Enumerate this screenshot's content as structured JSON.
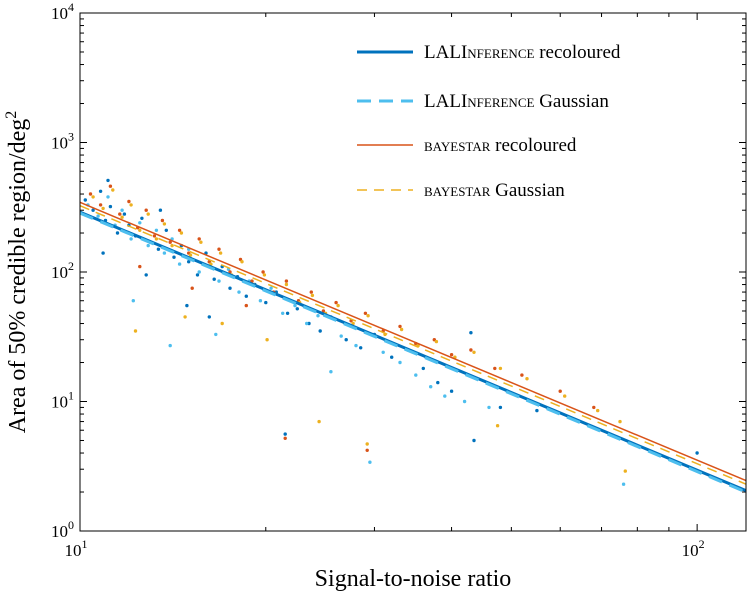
{
  "chart_data": {
    "type": "scatter",
    "title": "",
    "xlabel": "Signal-to-noise ratio",
    "ylabel": "Area of 50% credible region/deg",
    "ylabel_exponent": "2",
    "xscale": "log",
    "yscale": "log",
    "xlim": [
      10,
      120
    ],
    "ylim": [
      1,
      10000
    ],
    "x_ticks": [
      {
        "value": 10,
        "base": "10",
        "exp": "1"
      },
      {
        "value": 100,
        "base": "10",
        "exp": "2"
      }
    ],
    "y_ticks": [
      {
        "value": 1,
        "base": "10",
        "exp": "0"
      },
      {
        "value": 10,
        "base": "10",
        "exp": "1"
      },
      {
        "value": 100,
        "base": "10",
        "exp": "2"
      },
      {
        "value": 1000,
        "base": "10",
        "exp": "3"
      },
      {
        "value": 10000,
        "base": "10",
        "exp": "4"
      }
    ],
    "legend_position": "top-right",
    "legend": [
      {
        "name": "LALINFERENCE recoloured",
        "prefix": "LAL",
        "smallcaps": "Inference",
        "suffix": " recoloured",
        "color": "#0072BD",
        "style": "solid",
        "weight": "thick"
      },
      {
        "name": "LALINFERENCE Gaussian",
        "prefix": "LAL",
        "smallcaps": "Inference",
        "suffix": " Gaussian",
        "color": "#4DBEEE",
        "style": "dashed",
        "weight": "thick"
      },
      {
        "name": "BAYESTAR recoloured",
        "prefix": "",
        "smallcaps": "bayestar",
        "suffix": " recoloured",
        "color": "#D95319",
        "style": "solid",
        "weight": "thin"
      },
      {
        "name": "BAYESTAR Gaussian",
        "prefix": "",
        "smallcaps": "bayestar",
        "suffix": " Gaussian",
        "color": "#EDB120",
        "style": "dashed",
        "weight": "thin"
      }
    ],
    "series": [
      {
        "name": "LALINFERENCE recoloured",
        "color": "#0072BD",
        "fit": {
          "x": [
            10,
            120
          ],
          "y": [
            290,
            2.05
          ]
        }
      },
      {
        "name": "LALINFERENCE Gaussian",
        "color": "#4DBEEE",
        "fit": {
          "x": [
            10,
            120
          ],
          "y": [
            285,
            2.0
          ]
        }
      },
      {
        "name": "BAYESTAR recoloured",
        "color": "#D95319",
        "fit": {
          "x": [
            10,
            120
          ],
          "y": [
            345,
            2.45
          ]
        }
      },
      {
        "name": "BAYESTAR Gaussian",
        "color": "#EDB120",
        "fit": {
          "x": [
            10,
            120
          ],
          "y": [
            325,
            2.3
          ]
        }
      }
    ],
    "scatter_points": {
      "#0072BD": [
        [
          10.2,
          360
        ],
        [
          10.5,
          300
        ],
        [
          10.8,
          420
        ],
        [
          11.0,
          250
        ],
        [
          11.2,
          320
        ],
        [
          11.5,
          200
        ],
        [
          11.8,
          280
        ],
        [
          12.0,
          230
        ],
        [
          12.3,
          190
        ],
        [
          12.6,
          260
        ],
        [
          13.0,
          170
        ],
        [
          13.4,
          150
        ],
        [
          13.8,
          210
        ],
        [
          14.2,
          130
        ],
        [
          14.6,
          160
        ],
        [
          15.0,
          120
        ],
        [
          15.5,
          95
        ],
        [
          16.0,
          140
        ],
        [
          16.5,
          88
        ],
        [
          17.0,
          110
        ],
        [
          17.5,
          75
        ],
        [
          18.0,
          92
        ],
        [
          18.6,
          65
        ],
        [
          19.2,
          80
        ],
        [
          20.0,
          58
        ],
        [
          20.8,
          70
        ],
        [
          21.5,
          5.6
        ],
        [
          21.7,
          48
        ],
        [
          22.5,
          52
        ],
        [
          23.5,
          40
        ],
        [
          24.5,
          35
        ],
        [
          25.5,
          45
        ],
        [
          27.0,
          30
        ],
        [
          28.5,
          26
        ],
        [
          30.0,
          33
        ],
        [
          32.0,
          22
        ],
        [
          34.0,
          25
        ],
        [
          36.0,
          18
        ],
        [
          38.0,
          14
        ],
        [
          40.0,
          12
        ],
        [
          43.0,
          34
        ],
        [
          43.5,
          5.0
        ],
        [
          48.0,
          9.0
        ],
        [
          55.0,
          8.5
        ],
        [
          100.0,
          4.0
        ],
        [
          11.1,
          510
        ],
        [
          10.9,
          140
        ],
        [
          12.8,
          95
        ],
        [
          14.9,
          55
        ],
        [
          16.2,
          45
        ],
        [
          13.5,
          300
        ]
      ],
      "#4DBEEE": [
        [
          10.3,
          330
        ],
        [
          10.7,
          270
        ],
        [
          11.1,
          380
        ],
        [
          11.4,
          230
        ],
        [
          11.7,
          300
        ],
        [
          12.1,
          180
        ],
        [
          12.5,
          240
        ],
        [
          12.9,
          160
        ],
        [
          13.3,
          210
        ],
        [
          13.7,
          140
        ],
        [
          14.1,
          180
        ],
        [
          14.5,
          115
        ],
        [
          15.0,
          150
        ],
        [
          15.6,
          100
        ],
        [
          16.2,
          120
        ],
        [
          16.8,
          85
        ],
        [
          17.4,
          105
        ],
        [
          18.1,
          70
        ],
        [
          18.8,
          85
        ],
        [
          19.6,
          60
        ],
        [
          20.4,
          75
        ],
        [
          21.3,
          48
        ],
        [
          22.3,
          55
        ],
        [
          23.3,
          40
        ],
        [
          24.3,
          46
        ],
        [
          25.5,
          17
        ],
        [
          26.5,
          32
        ],
        [
          28.0,
          27
        ],
        [
          29.5,
          3.4
        ],
        [
          31.0,
          24
        ],
        [
          33.0,
          20
        ],
        [
          35.0,
          16
        ],
        [
          37.0,
          13
        ],
        [
          39.0,
          11
        ],
        [
          42.0,
          10
        ],
        [
          46.0,
          9
        ],
        [
          76.0,
          2.3
        ],
        [
          14.0,
          27
        ],
        [
          12.2,
          60
        ],
        [
          16.6,
          33
        ]
      ],
      "#D95319": [
        [
          10.4,
          400
        ],
        [
          10.8,
          330
        ],
        [
          11.2,
          460
        ],
        [
          11.6,
          280
        ],
        [
          12.0,
          350
        ],
        [
          12.4,
          220
        ],
        [
          12.8,
          300
        ],
        [
          13.2,
          190
        ],
        [
          13.6,
          250
        ],
        [
          14.0,
          170
        ],
        [
          14.5,
          210
        ],
        [
          15.0,
          140
        ],
        [
          15.6,
          180
        ],
        [
          16.2,
          120
        ],
        [
          16.8,
          150
        ],
        [
          17.5,
          100
        ],
        [
          18.2,
          125
        ],
        [
          19.0,
          85
        ],
        [
          19.8,
          100
        ],
        [
          20.6,
          70
        ],
        [
          21.5,
          5.2
        ],
        [
          21.6,
          85
        ],
        [
          22.6,
          60
        ],
        [
          23.7,
          70
        ],
        [
          24.8,
          50
        ],
        [
          26.0,
          58
        ],
        [
          27.5,
          42
        ],
        [
          29.0,
          48
        ],
        [
          29.2,
          4.2
        ],
        [
          31.0,
          35
        ],
        [
          33.0,
          38
        ],
        [
          35.0,
          28
        ],
        [
          37.5,
          30
        ],
        [
          40.0,
          23
        ],
        [
          43.0,
          25
        ],
        [
          47.0,
          18
        ],
        [
          52.0,
          16
        ],
        [
          60.0,
          12
        ],
        [
          68.0,
          9
        ],
        [
          12.5,
          110
        ],
        [
          15.2,
          75
        ],
        [
          18.6,
          55
        ]
      ],
      "#EDB120": [
        [
          10.5,
          380
        ],
        [
          10.9,
          310
        ],
        [
          11.3,
          430
        ],
        [
          11.7,
          265
        ],
        [
          12.1,
          330
        ],
        [
          12.5,
          210
        ],
        [
          12.9,
          280
        ],
        [
          13.3,
          180
        ],
        [
          13.7,
          235
        ],
        [
          14.1,
          160
        ],
        [
          14.6,
          200
        ],
        [
          15.1,
          135
        ],
        [
          15.7,
          170
        ],
        [
          16.3,
          115
        ],
        [
          16.9,
          140
        ],
        [
          17.6,
          95
        ],
        [
          18.3,
          120
        ],
        [
          19.1,
          80
        ],
        [
          19.9,
          95
        ],
        [
          20.7,
          68
        ],
        [
          21.6,
          80
        ],
        [
          22.7,
          58
        ],
        [
          23.8,
          66
        ],
        [
          24.4,
          7.0
        ],
        [
          25.0,
          48
        ],
        [
          26.2,
          55
        ],
        [
          27.7,
          40
        ],
        [
          29.2,
          4.7
        ],
        [
          29.3,
          46
        ],
        [
          31.2,
          33
        ],
        [
          33.2,
          36
        ],
        [
          35.3,
          27
        ],
        [
          37.8,
          29
        ],
        [
          40.5,
          22
        ],
        [
          43.5,
          24
        ],
        [
          47.5,
          6.5
        ],
        [
          48.0,
          18
        ],
        [
          53.0,
          15
        ],
        [
          61.0,
          11
        ],
        [
          69.0,
          8.5
        ],
        [
          75.0,
          7.0
        ],
        [
          76.5,
          2.9
        ],
        [
          12.3,
          35
        ],
        [
          14.8,
          45
        ],
        [
          17.0,
          40
        ],
        [
          20.1,
          30
        ]
      ]
    }
  }
}
